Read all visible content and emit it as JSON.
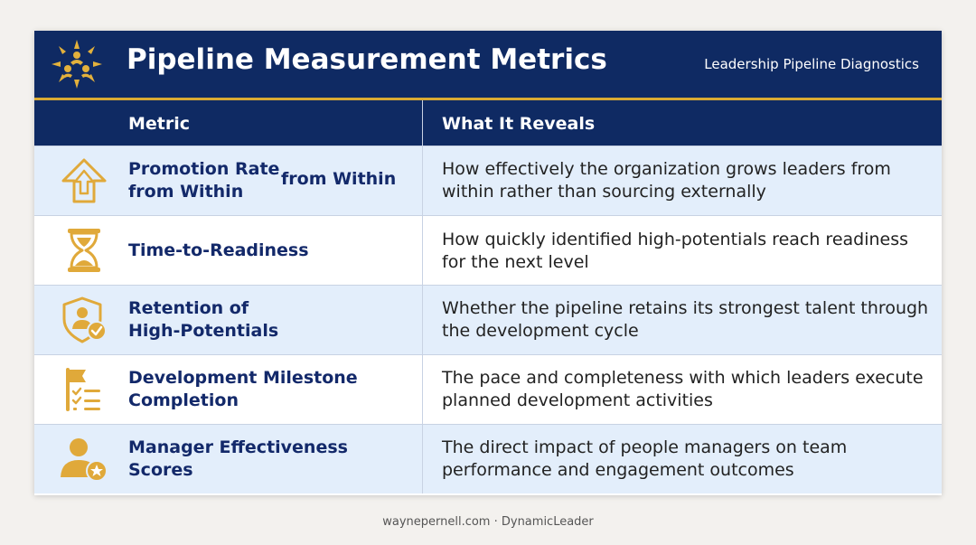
{
  "header": {
    "title": "Pipeline Measurement Metrics",
    "subtitle": "Leadership Pipeline Diagnostics",
    "logo_icon": "sun-figures-logo-icon"
  },
  "table": {
    "columns": [
      "Metric",
      "What It Reveals"
    ],
    "rows": [
      {
        "icon": "up-arrow-icon",
        "metric_lines": [
          "Promotion Rate",
          "from Within"
        ],
        "metric_extra": "from Within",
        "reveal": "How effectively the organization grows leaders from within rather than sourcing externally"
      },
      {
        "icon": "hourglass-icon",
        "metric_lines": [
          "Time-to-Readiness"
        ],
        "reveal": "How quickly identified high-potentials reach readiness for the next level"
      },
      {
        "icon": "shield-person-check-icon",
        "metric_lines": [
          "Retention of",
          "High-Potentials"
        ],
        "reveal": "Whether the pipeline retains its strongest talent through the development cycle"
      },
      {
        "icon": "flag-checklist-icon",
        "metric_lines": [
          "Development Milestone",
          "Completion"
        ],
        "reveal": "The pace and completeness with which leaders execute planned development activities"
      },
      {
        "icon": "person-star-icon",
        "metric_lines": [
          "Manager Effectiveness",
          "Scores"
        ],
        "reveal": "The direct impact of people managers on team performance and engagement outcomes"
      }
    ]
  },
  "footer": {
    "text": "waynepernell.com · DynamicLeader"
  },
  "colors": {
    "navy": "#0f2a63",
    "gold": "#d9aa33",
    "row_alt": "#e3eefb",
    "metric_text": "#13296a"
  }
}
